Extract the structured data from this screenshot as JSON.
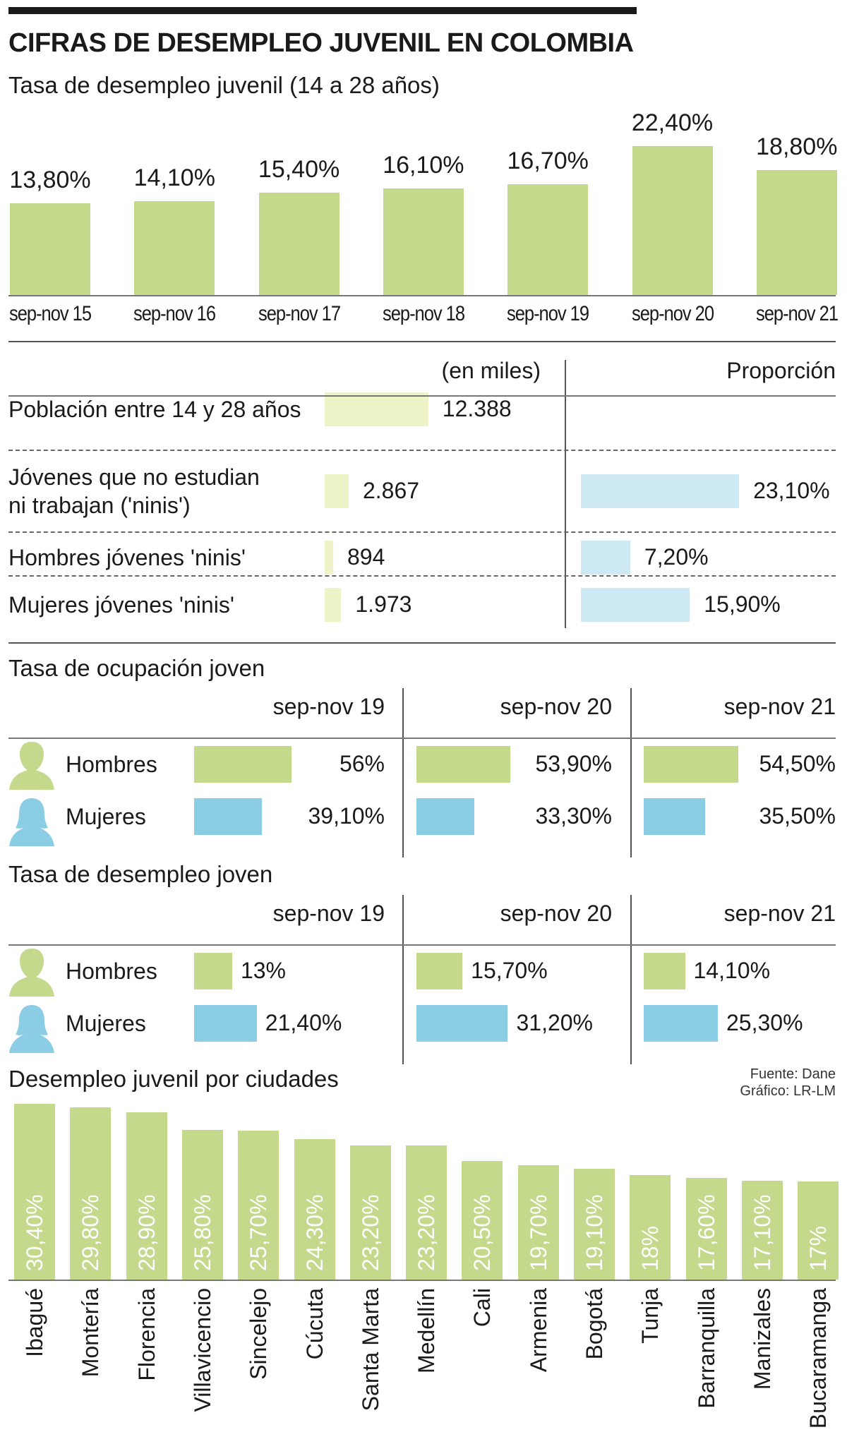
{
  "title": "CIFRAS DE DESEMPLEO JUVENIL EN COLOMBIA",
  "colors": {
    "green": "#c5d98c",
    "lightgreen": "#eef4c7",
    "blue": "#8ccde6",
    "lightblue": "#cde9f4",
    "avatar": "#c5d98c",
    "avatar_f": "#8ccde6"
  },
  "section1": {
    "title": "Tasa de desempleo juvenil (14 a 28 años)"
  },
  "section2": {
    "col1_header": "(en miles)",
    "col2_header": "Proporción",
    "rows": [
      {
        "label_lines": [
          "Población entre 14 y 28 años"
        ],
        "value_label": "12.388",
        "value": 12388,
        "prop_label": "",
        "prop": null
      },
      {
        "label_lines": [
          "Jóvenes que no estudian",
          "ni trabajan ('ninis')"
        ],
        "value_label": "2.867",
        "value": 2867,
        "prop_label": "23,10%",
        "prop": 23.1
      },
      {
        "label_lines": [
          "Hombres jóvenes 'ninis'"
        ],
        "value_label": "894",
        "value": 894,
        "prop_label": "7,20%",
        "prop": 7.2
      },
      {
        "label_lines": [
          "Mujeres jóvenes 'ninis'"
        ],
        "value_label": "1.973",
        "value": 1973,
        "prop_label": "15,90%",
        "prop": 15.9
      }
    ]
  },
  "section3": {
    "title": "Tasa de ocupación joven",
    "periods": [
      "sep-nov 19",
      "sep-nov 20",
      "sep-nov 21"
    ],
    "groups": [
      "Hombres",
      "Mujeres"
    ],
    "labels": [
      [
        "56%",
        "53,90%",
        "54,50%"
      ],
      [
        "39,10%",
        "33,30%",
        "35,50%"
      ]
    ],
    "values": [
      [
        56,
        53.9,
        54.5
      ],
      [
        39.1,
        33.3,
        35.5
      ]
    ]
  },
  "section4": {
    "title": "Tasa de desempleo joven",
    "periods": [
      "sep-nov 19",
      "sep-nov 20",
      "sep-nov 21"
    ],
    "groups": [
      "Hombres",
      "Mujeres"
    ],
    "labels": [
      [
        "13%",
        "15,70%",
        "14,10%"
      ],
      [
        "21,40%",
        "31,20%",
        "25,30%"
      ]
    ],
    "values": [
      [
        13,
        15.7,
        14.1
      ],
      [
        21.4,
        31.2,
        25.3
      ]
    ]
  },
  "section5": {
    "title": "Desempleo juvenil por ciudades"
  },
  "source": {
    "line1": "Fuente: Dane",
    "line2": "Gráfico: LR-LM"
  },
  "chart_data": [
    {
      "type": "bar",
      "title": "Tasa de desempleo juvenil (14 a 28 años)",
      "categories": [
        "sep-nov 15",
        "sep-nov 16",
        "sep-nov 17",
        "sep-nov 18",
        "sep-nov 19",
        "sep-nov 20",
        "sep-nov 21"
      ],
      "values": [
        13.8,
        14.1,
        15.4,
        16.1,
        16.7,
        22.4,
        18.8
      ],
      "labels": [
        "13,80%",
        "14,10%",
        "15,40%",
        "16,10%",
        "16,70%",
        "22,40%",
        "18,80%"
      ]
    },
    {
      "type": "bar",
      "title": "Desempleo juvenil por ciudades",
      "categories": [
        "Ibagué",
        "Montería",
        "Florencia",
        "Villavicencio",
        "Sincelejo",
        "Cúcuta",
        "Santa Marta",
        "Medellín",
        "Cali",
        "Armenia",
        "Bogotá",
        "Tunja",
        "Barranquilla",
        "Manizales",
        "Bucaramanga"
      ],
      "values": [
        30.4,
        29.8,
        28.9,
        25.8,
        25.7,
        24.3,
        23.2,
        23.2,
        20.5,
        19.7,
        19.1,
        18,
        17.6,
        17.1,
        17
      ],
      "labels": [
        "30,40%",
        "29,80%",
        "28,90%",
        "25,80%",
        "25,70%",
        "24,30%",
        "23,20%",
        "23,20%",
        "20,50%",
        "19,70%",
        "19,10%",
        "18%",
        "17,60%",
        "17,10%",
        "17%"
      ]
    }
  ]
}
